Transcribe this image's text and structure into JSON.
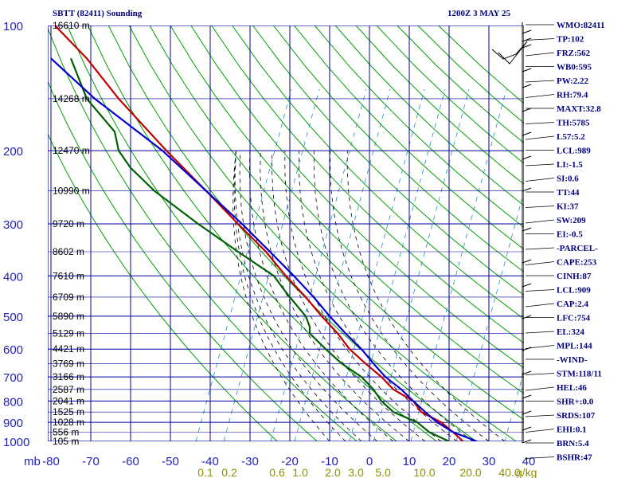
{
  "header": {
    "station": "SBTT (82411) Sounding",
    "time": "1200Z  3 MAY 25"
  },
  "chart_data": {
    "type": "skew-t",
    "x_unit_label": "mb",
    "pressure_ticks": [
      100,
      200,
      300,
      400,
      500,
      600,
      700,
      800,
      900,
      1000
    ],
    "temperature_ticks": [
      -80,
      -70,
      -60,
      -50,
      -40,
      -30,
      -20,
      -10,
      0,
      10,
      20,
      30,
      40
    ],
    "mixing_ratio_ticks": [
      "0.1",
      "0.2",
      "0.6",
      "1.0",
      "2.0",
      "3.0",
      "5.0",
      "10.0",
      "20.0",
      "40.0"
    ],
    "mixing_ratio_unit": "g/kg",
    "height_labels": [
      {
        "p": 100,
        "label": "16610 m"
      },
      {
        "p": 150,
        "label": "14268 m"
      },
      {
        "p": 200,
        "label": "12470 m"
      },
      {
        "p": 250,
        "label": "10990 m"
      },
      {
        "p": 300,
        "label": "9720 m"
      },
      {
        "p": 350,
        "label": "8602 m"
      },
      {
        "p": 400,
        "label": "7610 m"
      },
      {
        "p": 450,
        "label": "6709 m"
      },
      {
        "p": 500,
        "label": "5890 m"
      },
      {
        "p": 550,
        "label": "5129 m"
      },
      {
        "p": 600,
        "label": "4421 m"
      },
      {
        "p": 650,
        "label": "3769 m"
      },
      {
        "p": 700,
        "label": "3166 m"
      },
      {
        "p": 750,
        "label": "2587 m"
      },
      {
        "p": 800,
        "label": "2041 m"
      },
      {
        "p": 850,
        "label": "1525 m"
      },
      {
        "p": 900,
        "label": "1028 m"
      },
      {
        "p": 950,
        "label": "556 m"
      },
      {
        "p": 1000,
        "label": "105 m"
      }
    ],
    "series": [
      {
        "name": "temperature",
        "color": "#bf0000",
        "points": [
          [
            100,
            -79
          ],
          [
            120,
            -71
          ],
          [
            150,
            -63
          ],
          [
            200,
            -51
          ],
          [
            250,
            -41
          ],
          [
            300,
            -33
          ],
          [
            350,
            -26
          ],
          [
            400,
            -21
          ],
          [
            450,
            -16
          ],
          [
            500,
            -12
          ],
          [
            550,
            -8
          ],
          [
            600,
            -5
          ],
          [
            650,
            -1
          ],
          [
            700,
            3
          ],
          [
            750,
            6
          ],
          [
            800,
            11
          ],
          [
            850,
            13
          ],
          [
            900,
            18
          ],
          [
            950,
            21
          ],
          [
            1000,
            23.5
          ]
        ]
      },
      {
        "name": "dewpoint",
        "color": "#006000",
        "points": [
          [
            120,
            -75
          ],
          [
            150,
            -71
          ],
          [
            180,
            -64
          ],
          [
            200,
            -63
          ],
          [
            220,
            -60
          ],
          [
            250,
            -54
          ],
          [
            300,
            -43
          ],
          [
            350,
            -33
          ],
          [
            400,
            -24
          ],
          [
            425,
            -22
          ],
          [
            450,
            -20
          ],
          [
            500,
            -16
          ],
          [
            530,
            -15
          ],
          [
            550,
            -15
          ],
          [
            600,
            -11
          ],
          [
            650,
            -7
          ],
          [
            700,
            -2
          ],
          [
            750,
            1
          ],
          [
            800,
            3
          ],
          [
            850,
            6
          ],
          [
            900,
            12
          ],
          [
            950,
            15
          ],
          [
            1000,
            20
          ]
        ]
      },
      {
        "name": "parcel",
        "color": "#0000cf",
        "points": [
          [
            120,
            -80
          ],
          [
            150,
            -69
          ],
          [
            200,
            -52
          ],
          [
            250,
            -41
          ],
          [
            300,
            -32
          ],
          [
            350,
            -25
          ],
          [
            400,
            -19
          ],
          [
            450,
            -14
          ],
          [
            500,
            -10
          ],
          [
            550,
            -6
          ],
          [
            600,
            -2
          ],
          [
            650,
            1
          ],
          [
            700,
            4
          ],
          [
            750,
            8
          ],
          [
            800,
            11
          ],
          [
            850,
            14
          ],
          [
            900,
            17
          ],
          [
            950,
            21
          ],
          [
            1000,
            27
          ]
        ]
      }
    ],
    "grid": true
  },
  "stats": [
    "WMO:82411",
    "TP:102",
    "FRZ:562",
    "WB0:595",
    "PW:2.22",
    "RH:79.4",
    "MAXT:32.8",
    "TH:5785",
    "L57:5.2",
    "LCL:989",
    "LI:-1.5",
    "SI:0.6",
    "TT:44",
    "KI:37",
    "SW:209",
    "EI:-0.5",
    "-PARCEL-",
    "CAPE:253",
    "CINH:87",
    "LCL:909",
    "CAP:2.4",
    "LFC:754",
    "EL:324",
    "MPL:144",
    "-WIND-",
    "STM:118/11",
    "HEL:46",
    "SHR+:0.0",
    "SRDS:107",
    "EHI:0.1",
    "BRN:5.4",
    "BSHR:47"
  ],
  "colors": {
    "grid": "#00009f",
    "dry_adiabat": "#00a000",
    "moist_adiabat": "#000000",
    "mixing_ratio": "#2090c0",
    "label": "#1f1fbf",
    "mix_label": "#8f8f00"
  }
}
